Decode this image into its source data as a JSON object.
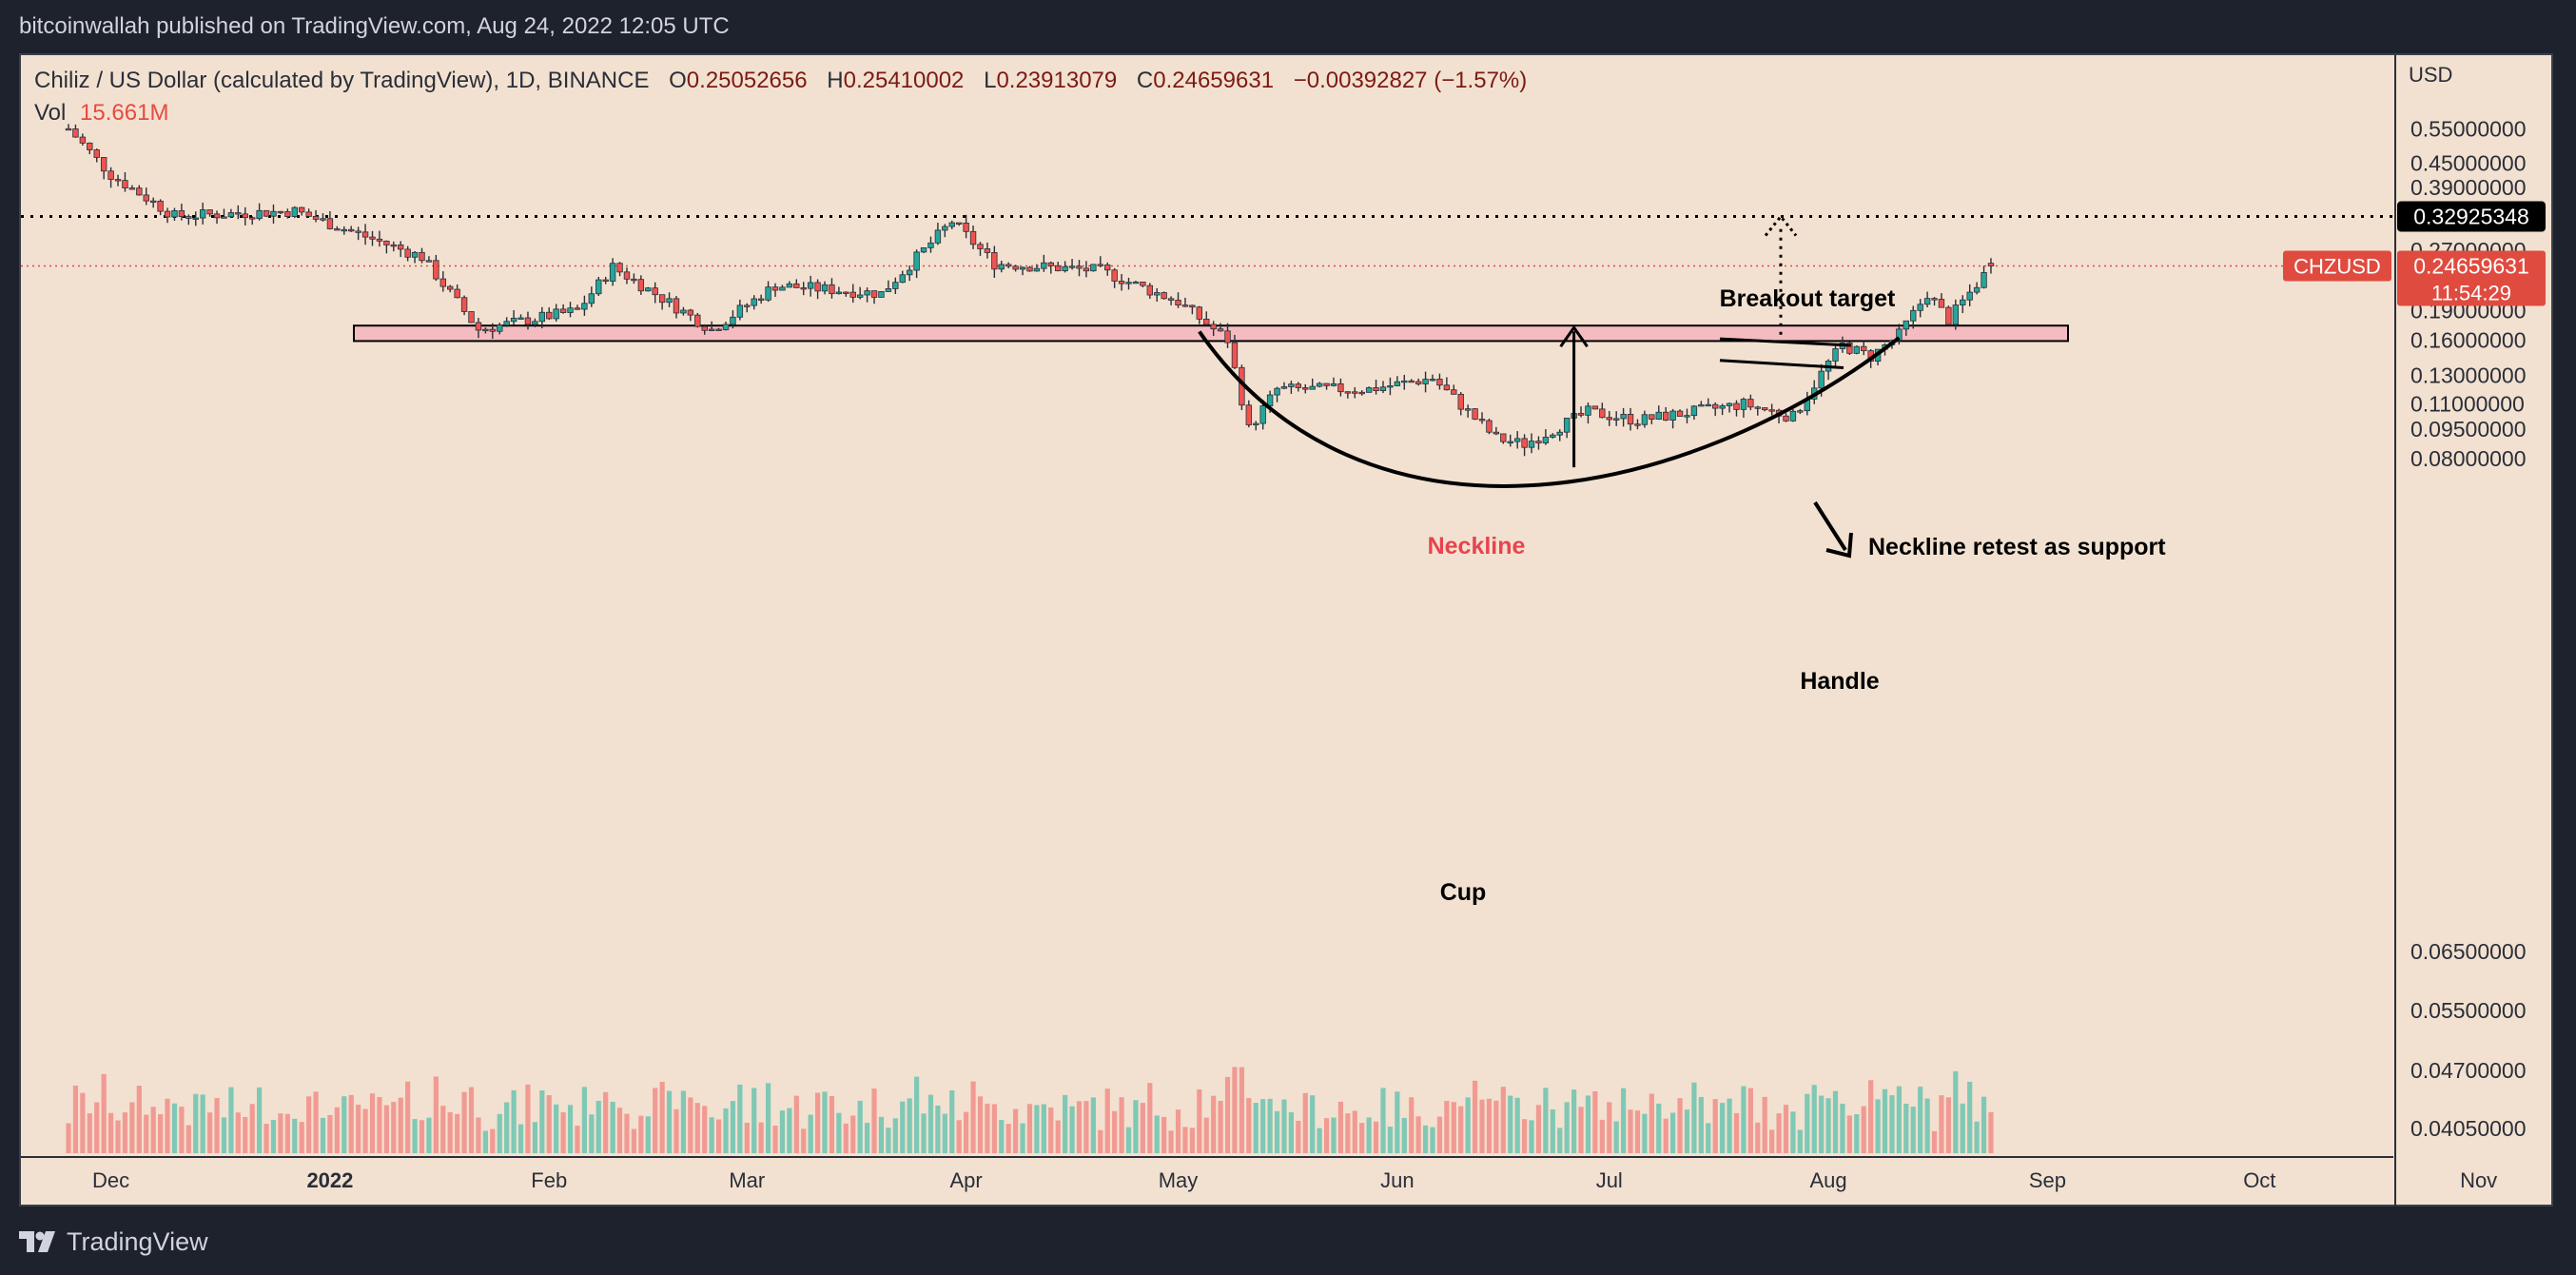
{
  "header": {
    "published": "bitcoinwallah published on TradingView.com, Aug 24, 2022 12:05 UTC"
  },
  "footer": {
    "brand": "TradingView",
    "logo_icon": "tradingview-logo-icon"
  },
  "legend": {
    "symbol": "Chiliz / US Dollar (calculated by TradingView), 1D, BINANCE",
    "o_label": "O",
    "o": "0.25052656",
    "h_label": "H",
    "h": "0.25410002",
    "l_label": "L",
    "l": "0.23913079",
    "c_label": "C",
    "c": "0.24659631",
    "change": "−0.00392827 (−1.57%)",
    "vol_label": "Vol",
    "vol": "15.661M"
  },
  "colors": {
    "background": "#f2e1d0",
    "up": "#26a69a",
    "down": "#ef5350",
    "wick": "#2a2e39",
    "neckline_zone": "#f4bcc0",
    "neckline_text": "#e8434e",
    "price_label": "#e04b3f"
  },
  "chart_data": {
    "type": "candlestick",
    "title": "",
    "symbol": "CHZUSD",
    "interval": "1D",
    "exchange": "BINANCE",
    "y_scale": "log",
    "y_axis_title": "USD",
    "y_ticks": [
      "0.55000000",
      "0.45000000",
      "0.39000000",
      "0.32925348",
      "0.27000000",
      "0.24659631",
      "0.19000000",
      "0.16000000",
      "0.13000000",
      "0.11000000",
      "0.09500000",
      "0.08000000",
      "0.06500000",
      "0.05500000",
      "0.04700000",
      "0.04050000"
    ],
    "x_ticks": [
      "Dec",
      "2022",
      "Feb",
      "Mar",
      "Apr",
      "May",
      "Jun",
      "Jul",
      "Aug",
      "Sep",
      "Oct",
      "Nov"
    ],
    "anchor_points": [
      {
        "date": "2021-11-25",
        "price": 0.55
      },
      {
        "date": "2021-12-01",
        "price": 0.42
      },
      {
        "date": "2021-12-10",
        "price": 0.33
      },
      {
        "date": "2021-12-27",
        "price": 0.34
      },
      {
        "date": "2022-01-14",
        "price": 0.26
      },
      {
        "date": "2022-01-22",
        "price": 0.17
      },
      {
        "date": "2022-02-05",
        "price": 0.19
      },
      {
        "date": "2022-02-10",
        "price": 0.245
      },
      {
        "date": "2022-02-24",
        "price": 0.17
      },
      {
        "date": "2022-03-05",
        "price": 0.22
      },
      {
        "date": "2022-03-20",
        "price": 0.21
      },
      {
        "date": "2022-03-30",
        "price": 0.32
      },
      {
        "date": "2022-04-05",
        "price": 0.25
      },
      {
        "date": "2022-04-20",
        "price": 0.24
      },
      {
        "date": "2022-05-01",
        "price": 0.2
      },
      {
        "date": "2022-05-08",
        "price": 0.16
      },
      {
        "date": "2022-05-11",
        "price": 0.095
      },
      {
        "date": "2022-05-15",
        "price": 0.12
      },
      {
        "date": "2022-05-28",
        "price": 0.12
      },
      {
        "date": "2022-06-06",
        "price": 0.128
      },
      {
        "date": "2022-06-15",
        "price": 0.09
      },
      {
        "date": "2022-06-19",
        "price": 0.087
      },
      {
        "date": "2022-06-28",
        "price": 0.105
      },
      {
        "date": "2022-07-05",
        "price": 0.1
      },
      {
        "date": "2022-07-20",
        "price": 0.11
      },
      {
        "date": "2022-07-27",
        "price": 0.102
      },
      {
        "date": "2022-08-01",
        "price": 0.14
      },
      {
        "date": "2022-08-03",
        "price": 0.155
      },
      {
        "date": "2022-08-07",
        "price": 0.145
      },
      {
        "date": "2022-08-11",
        "price": 0.165
      },
      {
        "date": "2022-08-15",
        "price": 0.21
      },
      {
        "date": "2022-08-18",
        "price": 0.18
      },
      {
        "date": "2022-08-20",
        "price": 0.2
      },
      {
        "date": "2022-08-24",
        "price": 0.2466
      }
    ],
    "current_price": "0.24659631",
    "countdown": "11:54:29",
    "breakout_target": "0.32925348",
    "neckline_zone": {
      "low": 0.159,
      "high": 0.174
    },
    "annotations": {
      "breakout": "Breakout target",
      "neckline": "Neckline",
      "retest": "Neckline retest as support",
      "handle": "Handle",
      "cup": "Cup"
    }
  }
}
